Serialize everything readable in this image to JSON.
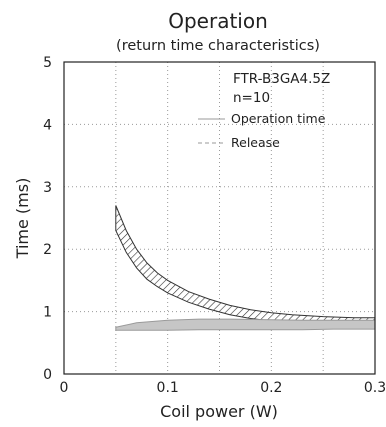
{
  "chart_data": {
    "type": "area",
    "title": "Operation",
    "subtitle": "(return time characteristics)",
    "xlabel": "Coil power (W)",
    "ylabel": "Time (ms)",
    "xlim": [
      0,
      0.3
    ],
    "ylim": [
      0,
      5
    ],
    "x_ticks": [
      "0",
      "0.1",
      "0.2",
      "0.3"
    ],
    "y_ticks": [
      "0",
      "1",
      "2",
      "3",
      "4",
      "5"
    ],
    "grid": true,
    "annotations": [
      "FTR-B3GA4.5Z",
      "n=10"
    ],
    "legend_position": "top-right",
    "series": [
      {
        "name": "Operation time",
        "style": "hatched band",
        "x": [
          0.05,
          0.06,
          0.07,
          0.08,
          0.09,
          0.1,
          0.12,
          0.14,
          0.16,
          0.18,
          0.2,
          0.22,
          0.25,
          0.28,
          0.3
        ],
        "upper": [
          2.7,
          2.3,
          2.0,
          1.78,
          1.62,
          1.5,
          1.32,
          1.2,
          1.1,
          1.03,
          0.98,
          0.95,
          0.92,
          0.9,
          0.9
        ],
        "lower": [
          2.3,
          1.95,
          1.7,
          1.52,
          1.4,
          1.3,
          1.15,
          1.04,
          0.95,
          0.89,
          0.85,
          0.82,
          0.8,
          0.78,
          0.77
        ]
      },
      {
        "name": "Release",
        "style": "gray band",
        "x": [
          0.05,
          0.07,
          0.1,
          0.13,
          0.16,
          0.2,
          0.23,
          0.26,
          0.3
        ],
        "upper": [
          0.75,
          0.82,
          0.86,
          0.88,
          0.88,
          0.87,
          0.86,
          0.86,
          0.86
        ],
        "lower": [
          0.7,
          0.7,
          0.7,
          0.71,
          0.71,
          0.71,
          0.71,
          0.72,
          0.72
        ]
      }
    ],
    "colors": {
      "axis": "#222222",
      "grid": "#9a9a9a",
      "hatch_outline": "#333333",
      "release_fill": "#c6c6c6",
      "release_edge": "#9a9a9a"
    }
  }
}
